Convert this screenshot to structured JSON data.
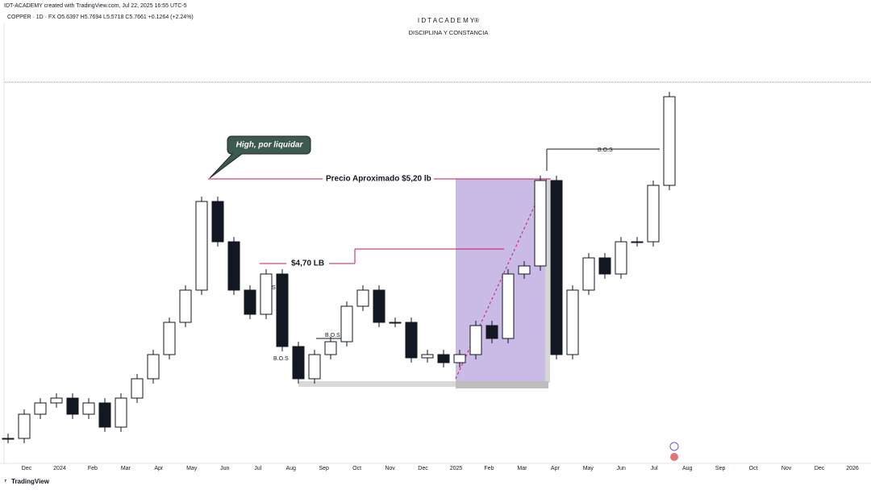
{
  "chart_data": {
    "type": "candlestick",
    "credit": "IDT-ACADEMY created with TradingView.com, Jul 22, 2025 16:55 UTC-5",
    "symbol_info": "COPPER · 1D · FX O5.6397 H5.7694 L5.5718 C5.7661 +0.1264 (+2.24%)",
    "title": "I D T A C A D E M Y®",
    "subtitle": "DISCIPLINA Y CONSTANCIA",
    "values": [
      3.59,
      3.74,
      3.81,
      3.84,
      3.74,
      3.81,
      3.66,
      3.84,
      3.96,
      4.11,
      4.31,
      4.51,
      5.06,
      4.81,
      4.51,
      4.36,
      4.61,
      4.16,
      3.96,
      4.11,
      4.19,
      4.41,
      4.51,
      4.31,
      4.31,
      4.09,
      4.11,
      4.06,
      4.11,
      4.29,
      4.21,
      4.61,
      4.66,
      5.19,
      4.11,
      4.51,
      4.71,
      4.61,
      4.81,
      4.81,
      5.16,
      5.71
    ],
    "up_color": "#26a69a",
    "down_color": "#131722",
    "ylim": [
      3.435,
      6.31
    ],
    "xaxis_labels": [
      "Dec",
      "2024",
      "Feb",
      "Mar",
      "Apr",
      "May",
      "Jun",
      "Jul",
      "Aug",
      "Sep",
      "Oct",
      "Nov",
      "Dec",
      "2025",
      "Feb",
      "Mar",
      "Apr",
      "May",
      "Jun",
      "Jul",
      "Aug",
      "Sep",
      "Oct",
      "Nov",
      "Dec",
      "2026"
    ],
    "annotations": {
      "callout": "High, por liquidar",
      "level_high": "Precio Aproximado $5,20 lb",
      "level_mid": "$4,70 LB",
      "bos": [
        "B.O.S",
        "B.O.S",
        "B.O.S",
        "B.O.S"
      ]
    },
    "brand": "TradingView"
  }
}
